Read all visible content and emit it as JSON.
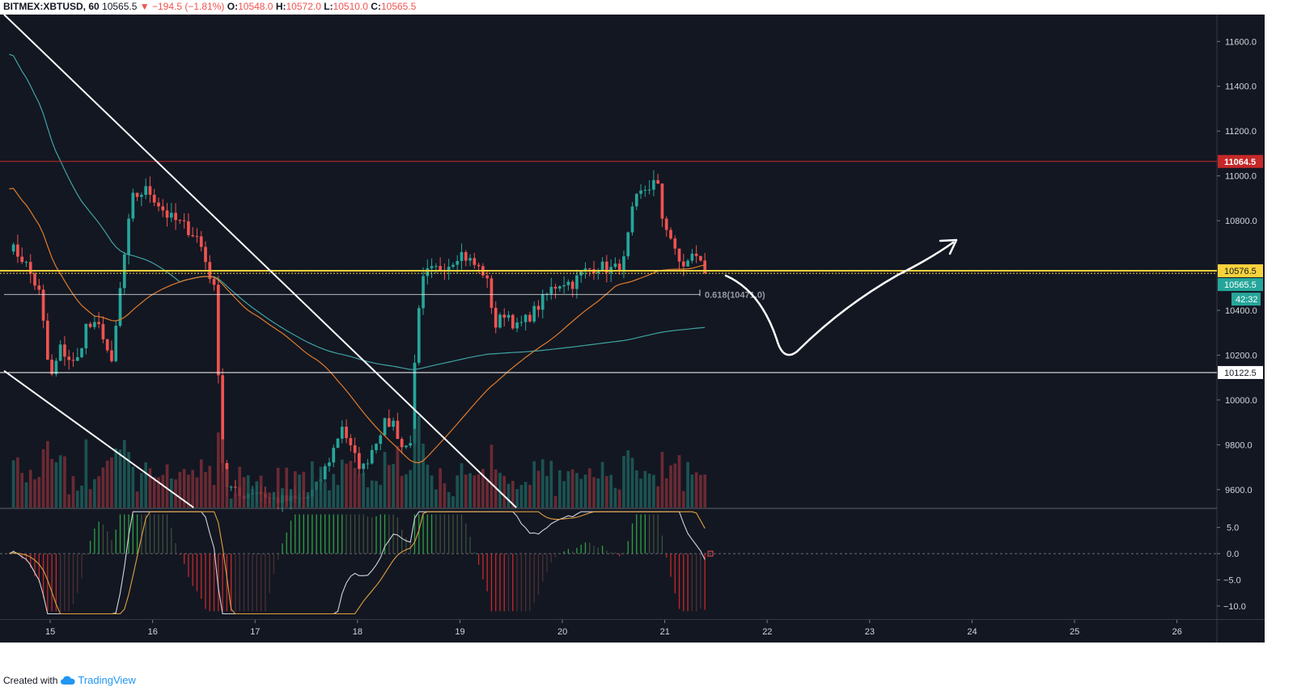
{
  "header": {
    "symbol": "BITMEX:XBTUSD, 60",
    "last": "10565.5",
    "change": "−194.5 (−1.81%)",
    "o_label": "O:",
    "o": "10548.0",
    "h_label": "H:",
    "h": "10572.0",
    "l_label": "L:",
    "l": "10510.0",
    "c_label": "C:",
    "c": "10565.5"
  },
  "footer": {
    "created": "Created with",
    "brand": "TradingView"
  },
  "colors": {
    "background": "#131722",
    "bull": "#26a69a",
    "bear": "#ef5350",
    "resistance": "#c62828",
    "support_yellow": "#f9d33c",
    "ma_teal": "#3fa3a3",
    "ma_orange": "#e07b2a",
    "white": "#ffffff"
  },
  "chart_data": {
    "type": "candlestick",
    "symbol": "BITMEX:XBTUSD",
    "interval": "60",
    "x_ticks": [
      "15",
      "16",
      "17",
      "18",
      "19",
      "20",
      "21",
      "22",
      "23",
      "24",
      "25",
      "26"
    ],
    "price_axis": {
      "ticks": [
        11600.0,
        11400.0,
        11200.0,
        11000.0,
        10800.0,
        10400.0,
        10200.0,
        10000.0,
        9800.0,
        9600.0
      ],
      "ylim": [
        9520,
        11720
      ]
    },
    "price_labels": [
      {
        "value": 11064.5,
        "text": "11064.5",
        "kind": "resistance"
      },
      {
        "value": 10576.5,
        "text": "10576.5",
        "kind": "support"
      },
      {
        "value": 10565.5,
        "text": "10565.5",
        "kind": "last"
      },
      {
        "value": 10122.5,
        "text": "10122.5",
        "kind": "level"
      }
    ],
    "countdown": "42:32",
    "fib_label": "0.618(10471.0)",
    "horizontal_levels": [
      {
        "value": 11064.5,
        "color": "#c62828"
      },
      {
        "value": 10576.5,
        "color": "#f9d33c"
      },
      {
        "value": 10565.5,
        "color": "#f9d33c",
        "dashed": true
      },
      {
        "value": 10471.0,
        "color": "#ffffff",
        "partial": true
      },
      {
        "value": 10122.5,
        "color": "#ffffff"
      }
    ],
    "indicator": {
      "name": "MACD",
      "ticks": [
        5.0,
        0.0,
        -5.0,
        -10.0
      ],
      "ylim": [
        -12.5,
        8.5
      ],
      "text_ticks": [
        "5.0",
        "0.0",
        "−5.0",
        "−10.0"
      ]
    },
    "ohlc_anchors": [
      [
        14.6,
        10690
      ],
      [
        14.75,
        10620
      ],
      [
        14.9,
        10470
      ],
      [
        15.0,
        10080
      ],
      [
        15.1,
        10230
      ],
      [
        15.25,
        10150
      ],
      [
        15.35,
        10330
      ],
      [
        15.5,
        10320
      ],
      [
        15.6,
        10150
      ],
      [
        15.7,
        10560
      ],
      [
        15.8,
        10900
      ],
      [
        15.95,
        10940
      ],
      [
        16.05,
        10880
      ],
      [
        16.15,
        10820
      ],
      [
        16.3,
        10780
      ],
      [
        16.45,
        10720
      ],
      [
        16.55,
        10570
      ],
      [
        16.62,
        10460
      ],
      [
        16.66,
        9860
      ],
      [
        16.7,
        9630
      ],
      [
        16.85,
        9570
      ],
      [
        17.0,
        9600
      ],
      [
        17.15,
        9560
      ],
      [
        17.3,
        9550
      ],
      [
        17.5,
        9560
      ],
      [
        17.6,
        9610
      ],
      [
        17.75,
        9760
      ],
      [
        17.85,
        9890
      ],
      [
        17.95,
        9760
      ],
      [
        18.05,
        9690
      ],
      [
        18.15,
        9790
      ],
      [
        18.25,
        9890
      ],
      [
        18.35,
        9900
      ],
      [
        18.45,
        9770
      ],
      [
        18.52,
        9830
      ],
      [
        18.58,
        10320
      ],
      [
        18.65,
        10560
      ],
      [
        18.75,
        10580
      ],
      [
        18.9,
        10610
      ],
      [
        19.0,
        10660
      ],
      [
        19.1,
        10620
      ],
      [
        19.25,
        10560
      ],
      [
        19.35,
        10330
      ],
      [
        19.45,
        10400
      ],
      [
        19.55,
        10320
      ],
      [
        19.65,
        10360
      ],
      [
        19.75,
        10410
      ],
      [
        19.9,
        10500
      ],
      [
        20.0,
        10530
      ],
      [
        20.1,
        10520
      ],
      [
        20.2,
        10570
      ],
      [
        20.35,
        10600
      ],
      [
        20.5,
        10580
      ],
      [
        20.6,
        10620
      ],
      [
        20.7,
        10880
      ],
      [
        20.8,
        10940
      ],
      [
        20.88,
        10960
      ],
      [
        20.92,
        10990
      ],
      [
        20.97,
        10820
      ],
      [
        21.05,
        10740
      ],
      [
        21.12,
        10620
      ],
      [
        21.2,
        10600
      ],
      [
        21.3,
        10660
      ],
      [
        21.38,
        10580
      ],
      [
        21.43,
        10565.5
      ]
    ]
  }
}
